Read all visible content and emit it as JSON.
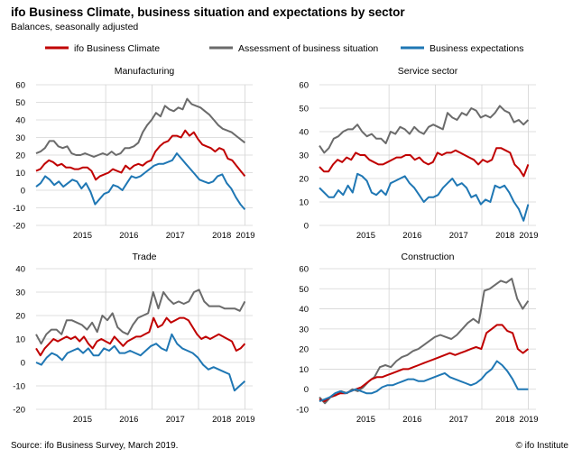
{
  "title": "ifo Business Climate, business situation and expectations by sector",
  "subtitle": "Balances, seasonally adjusted",
  "source": "Source: ifo Business Survey, March 2019.",
  "credit": "© ifo Institute",
  "colors": {
    "climate": "#c00000",
    "situation": "#6b6b6b",
    "expectations": "#1f77b4",
    "grid": "#d4d4d4"
  },
  "chart_data": {
    "type": "line",
    "grid": true,
    "legend_position": "top",
    "legend": [
      {
        "key": "climate",
        "label": "ifo Business Climate"
      },
      {
        "key": "situation",
        "label": "Assessment of business situation"
      },
      {
        "key": "expectations",
        "label": "Business expectations"
      }
    ],
    "x_range": [
      "2014-07",
      "2019-03"
    ],
    "x_ticks": [
      "2015",
      "2016",
      "2017",
      "2018",
      "2019"
    ],
    "panels": [
      {
        "title": "Manufacturing",
        "ylim": [
          -20,
          60
        ],
        "y_ticks": [
          -20,
          -10,
          0,
          10,
          20,
          30,
          40,
          50,
          60
        ],
        "climate": [
          11,
          12,
          15,
          17,
          16,
          14,
          15,
          13,
          13,
          12,
          12,
          13,
          13,
          11,
          6,
          8,
          9,
          10,
          12,
          11,
          10,
          14,
          12,
          14,
          15,
          14,
          16,
          17,
          22,
          25,
          27,
          28,
          31,
          31,
          30,
          34,
          31,
          33,
          29,
          26,
          25,
          24,
          22,
          24,
          23,
          18,
          17,
          14,
          11,
          8
        ],
        "situation": [
          21,
          22,
          24,
          28,
          28,
          25,
          24,
          25,
          21,
          20,
          20,
          21,
          20,
          19,
          20,
          21,
          20,
          22,
          20,
          21,
          24,
          24,
          25,
          27,
          33,
          37,
          40,
          44,
          42,
          48,
          46,
          45,
          47,
          46,
          52,
          49,
          48,
          47,
          45,
          43,
          40,
          37,
          35,
          34,
          33,
          31,
          29,
          27
        ],
        "expectations": [
          2,
          4,
          8,
          6,
          3,
          5,
          2,
          4,
          6,
          5,
          1,
          4,
          -1,
          -8,
          -5,
          -2,
          -1,
          3,
          2,
          0,
          4,
          8,
          7,
          8,
          10,
          12,
          14,
          15,
          15,
          16,
          17,
          21,
          18,
          15,
          12,
          9,
          6,
          5,
          4,
          5,
          8,
          9,
          4,
          1,
          -4,
          -8,
          -11
        ]
      },
      {
        "title": "Service sector",
        "ylim": [
          0,
          60
        ],
        "y_ticks": [
          0,
          10,
          20,
          30,
          40,
          50,
          60
        ],
        "climate": [
          25,
          23,
          23,
          26,
          28,
          27,
          29,
          28,
          31,
          30,
          30,
          28,
          27,
          26,
          26,
          27,
          28,
          29,
          29,
          30,
          30,
          28,
          29,
          27,
          26,
          27,
          31,
          30,
          31,
          31,
          32,
          31,
          30,
          29,
          28,
          26,
          28,
          27,
          28,
          33,
          33,
          32,
          31,
          26,
          24,
          21,
          26
        ],
        "situation": [
          34,
          31,
          33,
          37,
          38,
          40,
          41,
          41,
          43,
          40,
          38,
          39,
          37,
          37,
          35,
          40,
          39,
          42,
          41,
          39,
          42,
          40,
          39,
          42,
          43,
          42,
          41,
          48,
          46,
          45,
          48,
          47,
          50,
          49,
          46,
          47,
          46,
          48,
          51,
          49,
          48,
          44,
          45,
          43,
          45
        ],
        "expectations": [
          16,
          14,
          12,
          12,
          15,
          13,
          17,
          14,
          22,
          21,
          19,
          14,
          13,
          15,
          13,
          18,
          19,
          20,
          21,
          18,
          16,
          13,
          10,
          12,
          12,
          13,
          16,
          18,
          20,
          17,
          18,
          16,
          12,
          13,
          9,
          11,
          10,
          17,
          16,
          17,
          14,
          10,
          7,
          2,
          9
        ]
      },
      {
        "title": "Trade",
        "ylim": [
          -20,
          40
        ],
        "y_ticks": [
          -20,
          -10,
          0,
          10,
          20,
          30,
          40
        ],
        "climate": [
          6,
          3,
          6,
          8,
          10,
          9,
          10,
          11,
          10,
          11,
          9,
          11,
          8,
          6,
          9,
          10,
          9,
          8,
          11,
          9,
          7,
          9,
          10,
          11,
          11,
          12,
          13,
          19,
          15,
          16,
          19,
          17,
          18,
          19,
          19,
          18,
          15,
          12,
          10,
          11,
          10,
          11,
          12,
          11,
          10,
          9,
          5,
          6,
          8
        ],
        "situation": [
          12,
          8,
          12,
          14,
          14,
          12,
          18,
          18,
          17,
          16,
          14,
          17,
          13,
          20,
          18,
          21,
          15,
          13,
          12,
          16,
          19,
          20,
          21,
          30,
          23,
          30,
          27,
          25,
          26,
          25,
          26,
          30,
          31,
          26,
          24,
          24,
          24,
          23,
          23,
          23,
          22,
          26
        ],
        "expectations": [
          0,
          -1,
          2,
          4,
          3,
          1,
          4,
          5,
          6,
          4,
          6,
          3,
          3,
          6,
          5,
          7,
          4,
          4,
          5,
          4,
          3,
          5,
          7,
          8,
          6,
          5,
          12,
          8,
          6,
          5,
          4,
          2,
          -1,
          -3,
          -2,
          -3,
          -4,
          -5,
          -12,
          -10,
          -8
        ]
      },
      {
        "title": "Construction",
        "ylim": [
          -10,
          60
        ],
        "y_ticks": [
          -10,
          0,
          10,
          20,
          30,
          40,
          50,
          60
        ],
        "climate": [
          -5,
          -6,
          -4,
          -3,
          -2,
          -2,
          -1,
          0,
          1,
          3,
          5,
          6,
          6,
          7,
          8,
          9,
          10,
          10,
          11,
          12,
          13,
          14,
          15,
          16,
          17,
          18,
          17,
          18,
          19,
          20,
          21,
          20,
          28,
          30,
          32,
          32,
          29,
          28,
          20,
          18,
          20
        ],
        "situation": [
          -4,
          -7,
          -4,
          -3,
          -1,
          -2,
          0,
          -1,
          1,
          4,
          6,
          11,
          12,
          11,
          14,
          16,
          17,
          19,
          20,
          22,
          24,
          26,
          27,
          26,
          25,
          27,
          30,
          33,
          35,
          33,
          49,
          50,
          52,
          54,
          53,
          55,
          45,
          40,
          44
        ],
        "expectations": [
          -6,
          -5,
          -4,
          -2,
          -1,
          -2,
          -1,
          0,
          -1,
          -2,
          -2,
          -1,
          1,
          2,
          2,
          3,
          4,
          5,
          5,
          4,
          4,
          5,
          6,
          7,
          8,
          6,
          5,
          4,
          3,
          2,
          3,
          5,
          8,
          10,
          14,
          12,
          9,
          5,
          0,
          0,
          0
        ]
      }
    ]
  }
}
